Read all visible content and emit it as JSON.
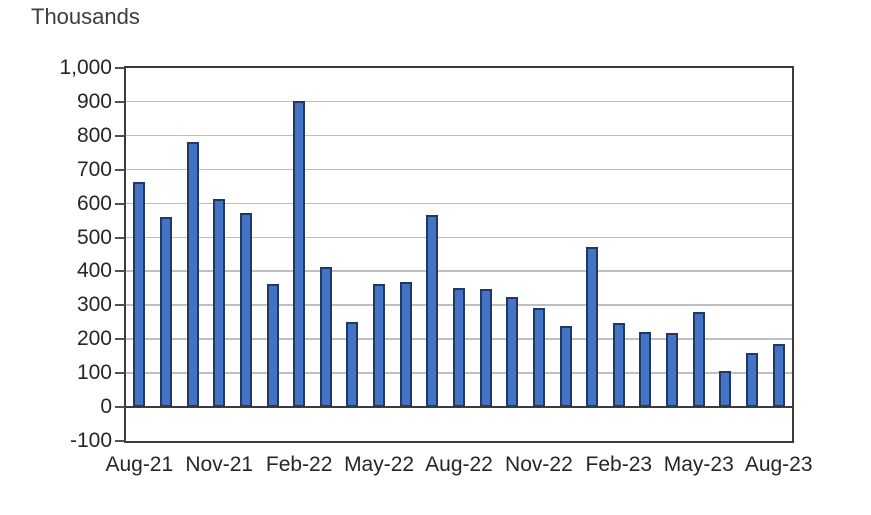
{
  "chart": {
    "unit_label": "Thousands"
  },
  "chart_data": {
    "type": "bar",
    "title": "",
    "unit_label": "Thousands",
    "xlabel": "",
    "ylabel": "Thousands",
    "x": [
      "Aug-21",
      "Sep-21",
      "Oct-21",
      "Nov-21",
      "Dec-21",
      "Jan-22",
      "Feb-22",
      "Mar-22",
      "Apr-22",
      "May-22",
      "Jun-22",
      "Jul-22",
      "Aug-22",
      "Sep-22",
      "Oct-22",
      "Nov-22",
      "Dec-22",
      "Jan-23",
      "Feb-23",
      "Mar-23",
      "Apr-23",
      "May-23",
      "Jun-23",
      "Jul-23",
      "Aug-23"
    ],
    "values": [
      663,
      560,
      782,
      615,
      571,
      364,
      904,
      413,
      252,
      362,
      369,
      567,
      352,
      349,
      325,
      291,
      240,
      471,
      247,
      221,
      219,
      281,
      107,
      160,
      187
    ],
    "x_tick_labels": [
      "Aug-21",
      "Nov-21",
      "Feb-22",
      "May-22",
      "Aug-22",
      "Nov-22",
      "Feb-23",
      "May-23",
      "Aug-23"
    ],
    "x_tick_indices": [
      0,
      3,
      6,
      9,
      12,
      15,
      18,
      21,
      24
    ],
    "ylim": [
      -100,
      1000
    ],
    "y_tick_step": 100,
    "y_tick_labels": [
      "1,000",
      "900",
      "800",
      "700",
      "600",
      "500",
      "400",
      "300",
      "200",
      "100",
      "0",
      "-100"
    ],
    "y_tick_values": [
      1000,
      900,
      800,
      700,
      600,
      500,
      400,
      300,
      200,
      100,
      0,
      -100
    ],
    "grid": "horizontal-gridlines-on",
    "legend": "none",
    "colors": {
      "bar_fill": "#4472C4",
      "bar_border": "#1F3864",
      "gridline": "#BFBFBF",
      "axis": "#3A3A3A",
      "text": "#262626"
    }
  }
}
